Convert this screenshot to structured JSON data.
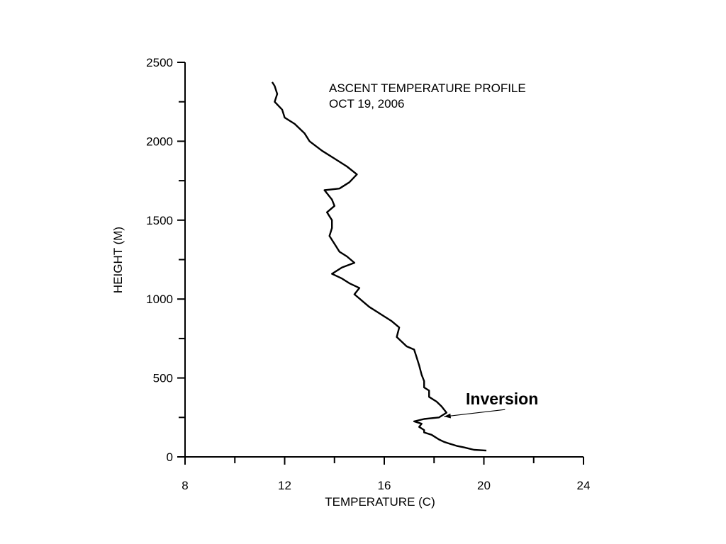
{
  "chart_data": {
    "type": "line",
    "title": "ASCENT TEMPERATURE PROFILE",
    "subtitle": "OCT 19, 2006",
    "xlabel": "TEMPERATURE (C)",
    "ylabel": "HEIGHT (M)",
    "xlim": [
      8,
      24
    ],
    "ylim": [
      0,
      2500
    ],
    "x_ticks": [
      8,
      12,
      16,
      20,
      24
    ],
    "x_minor_ticks": [
      10,
      14,
      18,
      22
    ],
    "y_ticks": [
      0,
      500,
      1000,
      1500,
      2000,
      2500
    ],
    "y_minor_ticks": [
      250,
      750,
      1250,
      1750,
      2250
    ],
    "grid": false,
    "legend": "none",
    "series": [
      {
        "points": [
          [
            20.1,
            40
          ],
          [
            19.6,
            45
          ],
          [
            19.2,
            60
          ],
          [
            18.9,
            70
          ],
          [
            18.6,
            85
          ],
          [
            18.4,
            95
          ],
          [
            18.2,
            110
          ],
          [
            17.9,
            140
          ],
          [
            17.6,
            155
          ],
          [
            17.6,
            170
          ],
          [
            17.4,
            190
          ],
          [
            17.5,
            210
          ],
          [
            17.2,
            225
          ],
          [
            17.6,
            240
          ],
          [
            18.2,
            250
          ],
          [
            18.5,
            280
          ],
          [
            18.3,
            320
          ],
          [
            18.1,
            350
          ],
          [
            17.8,
            380
          ],
          [
            17.8,
            420
          ],
          [
            17.6,
            440
          ],
          [
            17.6,
            480
          ],
          [
            17.5,
            520
          ],
          [
            17.4,
            580
          ],
          [
            17.3,
            630
          ],
          [
            17.2,
            680
          ],
          [
            16.9,
            700
          ],
          [
            16.5,
            760
          ],
          [
            16.6,
            820
          ],
          [
            16.3,
            860
          ],
          [
            15.9,
            900
          ],
          [
            15.7,
            920
          ],
          [
            15.4,
            950
          ],
          [
            15.1,
            990
          ],
          [
            14.8,
            1030
          ],
          [
            15.0,
            1070
          ],
          [
            14.6,
            1100
          ],
          [
            14.3,
            1130
          ],
          [
            13.9,
            1160
          ],
          [
            14.3,
            1200
          ],
          [
            14.8,
            1230
          ],
          [
            14.5,
            1270
          ],
          [
            14.2,
            1300
          ],
          [
            14.0,
            1350
          ],
          [
            13.8,
            1400
          ],
          [
            13.9,
            1450
          ],
          [
            13.9,
            1500
          ],
          [
            13.7,
            1550
          ],
          [
            14.0,
            1590
          ],
          [
            13.9,
            1630
          ],
          [
            13.6,
            1690
          ],
          [
            14.2,
            1700
          ],
          [
            14.6,
            1740
          ],
          [
            14.9,
            1790
          ],
          [
            14.5,
            1840
          ],
          [
            14.0,
            1890
          ],
          [
            13.5,
            1940
          ],
          [
            13.0,
            2000
          ],
          [
            12.8,
            2050
          ],
          [
            12.4,
            2110
          ],
          [
            12.0,
            2150
          ],
          [
            11.9,
            2200
          ],
          [
            11.6,
            2250
          ],
          [
            11.7,
            2300
          ],
          [
            11.6,
            2350
          ],
          [
            11.5,
            2375
          ]
        ]
      }
    ],
    "annotations": [
      {
        "text": "Inversion",
        "arrow_to": [
          18.4,
          255
        ]
      }
    ]
  }
}
